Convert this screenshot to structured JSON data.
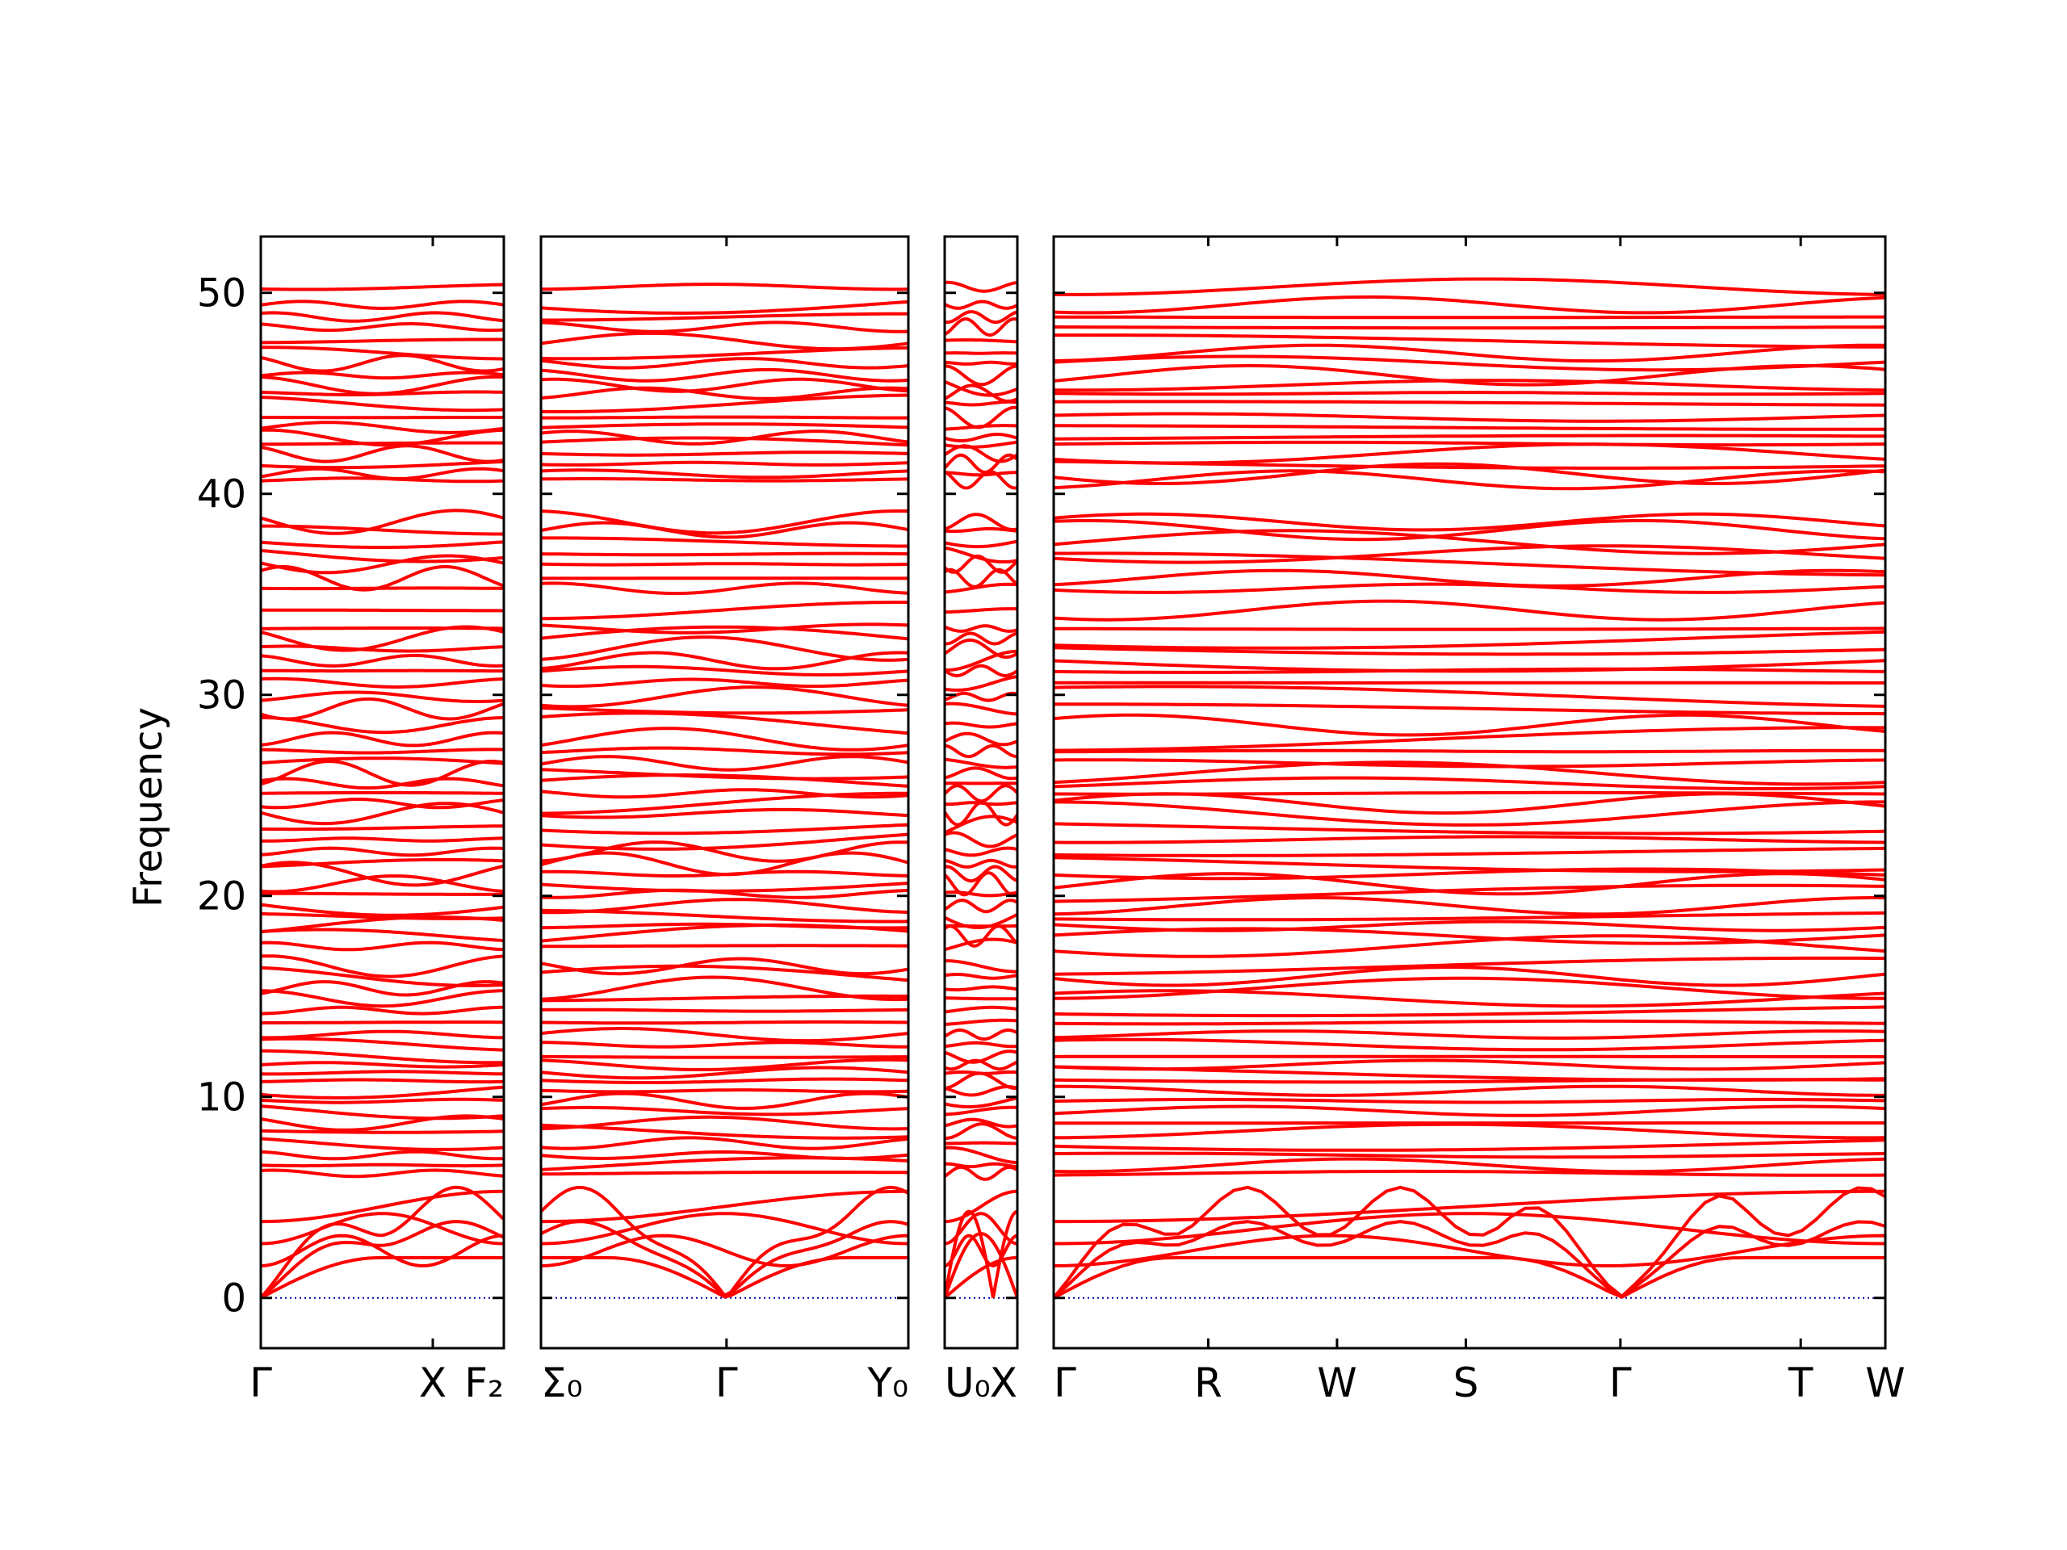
{
  "chart_data": {
    "type": "line",
    "title": "",
    "ylabel": "Frequency",
    "xlabel": "",
    "ylim": [
      -2.5,
      52.8
    ],
    "yticks": [
      0,
      10,
      20,
      30,
      40,
      50
    ],
    "grid": false,
    "legend": "none",
    "colors": {
      "band": "#ff0000",
      "zero_line": "#0000aa",
      "axes": "#000000"
    },
    "segments": [
      {
        "name": "segment-1",
        "path_length": 3.25,
        "ticks": [
          {
            "label": "Γ",
            "x": 0
          },
          {
            "label": "X",
            "x": 2.3
          },
          {
            "label": "F₂",
            "x": 3.25
          }
        ]
      },
      {
        "name": "segment-2",
        "path_length": 4.95,
        "ticks": [
          {
            "label": "Σ₀",
            "x": 0
          },
          {
            "label": "Γ",
            "x": 2.5
          },
          {
            "label": "Y₀",
            "x": 4.95
          }
        ]
      },
      {
        "name": "segment-3",
        "path_length": 1.0,
        "ticks": [
          {
            "label": "U₀",
            "x": 0
          },
          {
            "label": "X",
            "x": 1.0
          }
        ]
      },
      {
        "name": "segment-4",
        "path_length": 11.3,
        "ticks": [
          {
            "label": "Γ",
            "x": 0
          },
          {
            "label": "R",
            "x": 2.1
          },
          {
            "label": "W",
            "x": 3.85
          },
          {
            "label": "S",
            "x": 5.6
          },
          {
            "label": "Γ",
            "x": 7.7
          },
          {
            "label": "T",
            "x": 10.15
          },
          {
            "label": "W",
            "x": 11.3
          }
        ]
      }
    ],
    "flat_band_levels": [
      50.3,
      49.4,
      48.8,
      48.3,
      47.6,
      47.0,
      46.5,
      45.9,
      45.4,
      45.0,
      44.5,
      43.8,
      43.3,
      42.8,
      42.5,
      42.0,
      41.5,
      41.0,
      40.7,
      38.6,
      38.2,
      37.6,
      37.0,
      36.5,
      35.8,
      35.3,
      34.2,
      33.3,
      32.8,
      32.3,
      31.7,
      31.2,
      30.6,
      29.9,
      29.3,
      28.5,
      27.8,
      27.2,
      26.6,
      26.1,
      25.6,
      25.1,
      24.6,
      24.1,
      23.4,
      22.8,
      22.2,
      21.6,
      21.1,
      20.6,
      20.1,
      19.5,
      19.0,
      18.5,
      18.0,
      17.5,
      16.5,
      16.0,
      15.4,
      14.9,
      14.3,
      13.7,
      13.1,
      12.6,
      12.0,
      11.6,
      11.2,
      10.8,
      10.3,
      9.8,
      9.3,
      8.7,
      8.3,
      7.7,
      7.1,
      6.6,
      6.2
    ],
    "acoustic_modes": {
      "gamma_frequency": 0,
      "optical_low_levels": [
        5.3,
        4.2,
        3.1
      ]
    }
  }
}
